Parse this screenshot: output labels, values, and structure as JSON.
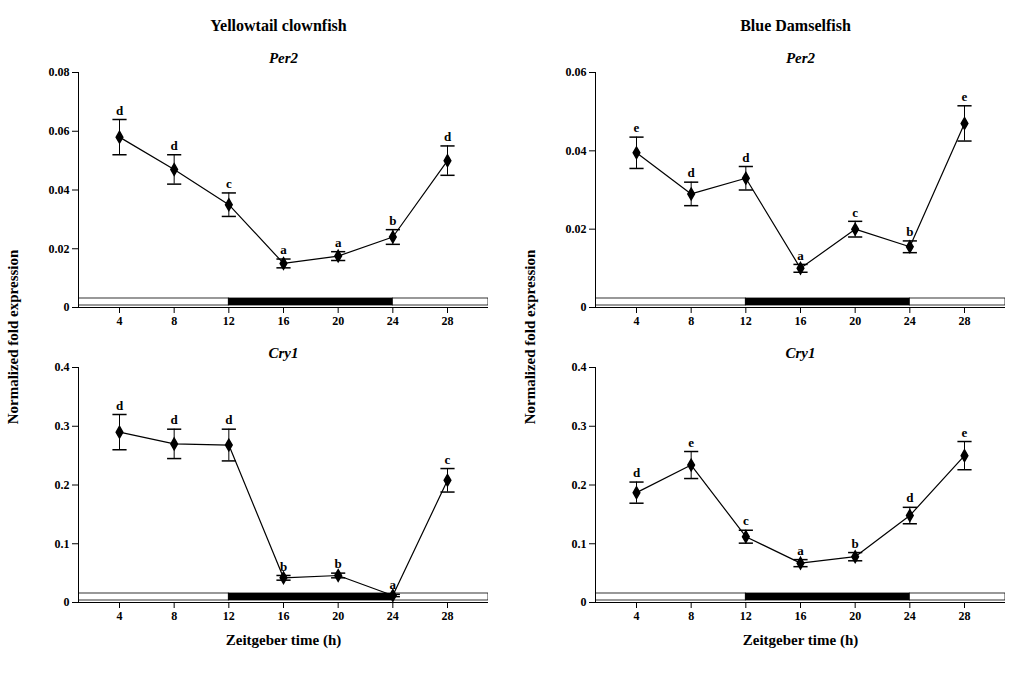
{
  "chart_data": [
    {
      "type": "line",
      "column_title": "Yellowtail clownfish",
      "title": "Per2",
      "y_label": "Normalized fold expression",
      "x": [
        4,
        8,
        12,
        16,
        20,
        24,
        28
      ],
      "values": [
        0.058,
        0.047,
        0.035,
        0.015,
        0.0175,
        0.024,
        0.05
      ],
      "errors": [
        0.006,
        0.005,
        0.004,
        0.0015,
        0.0015,
        0.0025,
        0.005
      ],
      "annotations": [
        "d",
        "d",
        "c",
        "a",
        "a",
        "b",
        "d"
      ],
      "dark_period": [
        12,
        24
      ],
      "xlim": [
        1,
        31
      ],
      "xticks": [
        4,
        8,
        12,
        16,
        20,
        24,
        28
      ],
      "ylim": [
        0,
        0.08
      ],
      "yticks": [
        0,
        0.02,
        0.04,
        0.06,
        0.08
      ],
      "color": "#000000",
      "marker": "diamond",
      "grid": false
    },
    {
      "type": "line",
      "title": "Cry1",
      "x_label": "Zeitgeber time (h)",
      "x": [
        4,
        8,
        12,
        16,
        20,
        24,
        28
      ],
      "values": [
        0.29,
        0.27,
        0.268,
        0.042,
        0.046,
        0.012,
        0.208
      ],
      "errors": [
        0.03,
        0.025,
        0.027,
        0.004,
        0.004,
        0.002,
        0.02
      ],
      "annotations": [
        "d",
        "d",
        "d",
        "b",
        "b",
        "a",
        "c"
      ],
      "dark_period": [
        12,
        24
      ],
      "xlim": [
        1,
        31
      ],
      "xticks": [
        4,
        8,
        12,
        16,
        20,
        24,
        28
      ],
      "ylim": [
        0,
        0.4
      ],
      "yticks": [
        0,
        0.1,
        0.2,
        0.3,
        0.4
      ],
      "color": "#000000",
      "marker": "diamond",
      "grid": false
    },
    {
      "type": "line",
      "column_title": "Blue Damselfish",
      "title": "Per2",
      "y_label": "Normalized fold expression",
      "x": [
        4,
        8,
        12,
        16,
        20,
        24,
        28
      ],
      "values": [
        0.0395,
        0.029,
        0.033,
        0.01,
        0.02,
        0.0155,
        0.047
      ],
      "errors": [
        0.004,
        0.003,
        0.003,
        0.001,
        0.002,
        0.0015,
        0.0045
      ],
      "annotations": [
        "e",
        "d",
        "d",
        "a",
        "c",
        "b",
        "e"
      ],
      "dark_period": [
        12,
        24
      ],
      "xlim": [
        1,
        31
      ],
      "xticks": [
        4,
        8,
        12,
        16,
        20,
        24,
        28
      ],
      "ylim": [
        0,
        0.06
      ],
      "yticks": [
        0,
        0.02,
        0.04,
        0.06
      ],
      "color": "#000000",
      "marker": "diamond",
      "grid": false
    },
    {
      "type": "line",
      "title": "Cry1",
      "x_label": "Zeitgeber time (h)",
      "x": [
        4,
        8,
        12,
        16,
        20,
        24,
        28
      ],
      "values": [
        0.187,
        0.234,
        0.112,
        0.067,
        0.078,
        0.148,
        0.25
      ],
      "errors": [
        0.018,
        0.023,
        0.011,
        0.006,
        0.007,
        0.014,
        0.024
      ],
      "annotations": [
        "d",
        "e",
        "c",
        "a",
        "b",
        "d",
        "e"
      ],
      "dark_period": [
        12,
        24
      ],
      "xlim": [
        1,
        31
      ],
      "xticks": [
        4,
        8,
        12,
        16,
        20,
        24,
        28
      ],
      "ylim": [
        0,
        0.4
      ],
      "yticks": [
        0,
        0.1,
        0.2,
        0.3,
        0.4
      ],
      "color": "#000000",
      "marker": "diamond",
      "grid": false
    }
  ]
}
